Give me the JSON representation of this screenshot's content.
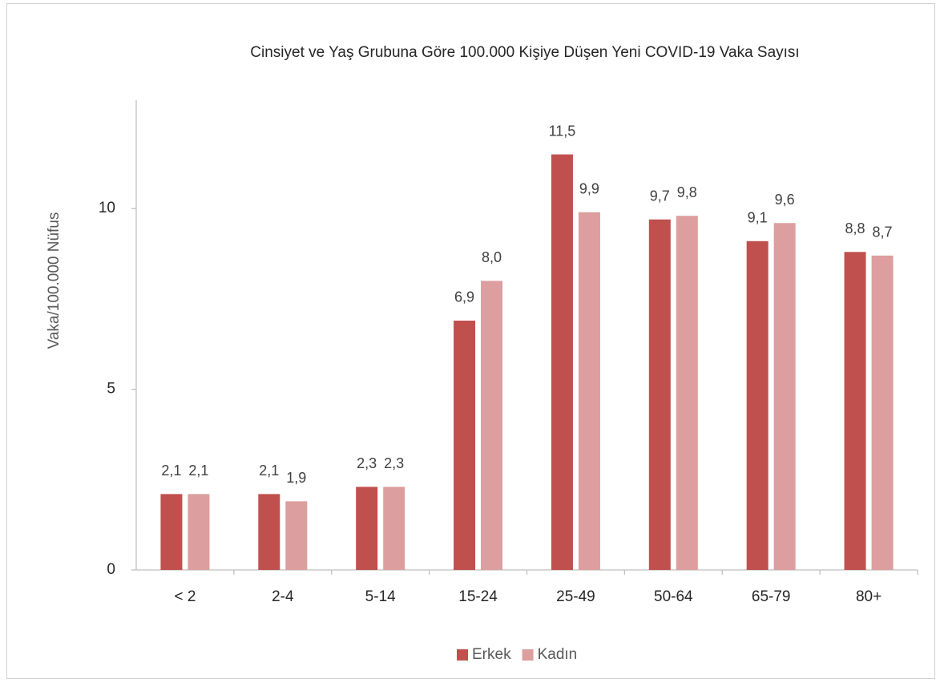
{
  "chart_data": {
    "type": "bar",
    "title": "Cinsiyet ve Yaş Grubuna Göre 100.000 Kişiye Düşen Yeni COVID-19 Vaka Sayısı",
    "y_label": "Vaka/100.000 Nüfus",
    "categories": [
      "< 2",
      "2-4",
      "5-14",
      "15-24",
      "25-49",
      "50-64",
      "65-79",
      "80+"
    ],
    "series": [
      {
        "name": "Erkek",
        "color": "#c0504d",
        "values": [
          2.1,
          2.1,
          2.3,
          6.9,
          11.5,
          9.7,
          9.1,
          8.8
        ],
        "value_labels": [
          "2,1",
          "2,1",
          "2,3",
          "6,9",
          "11,5",
          "9,7",
          "9,1",
          "8,8"
        ]
      },
      {
        "name": "Kadın",
        "color": "#dc9e9e",
        "values": [
          2.1,
          1.9,
          2.3,
          8.0,
          9.9,
          9.8,
          9.6,
          8.7
        ],
        "value_labels": [
          "2,1",
          "1,9",
          "2,3",
          "8,0",
          "9,9",
          "9,8",
          "9,6",
          "8,7"
        ]
      }
    ],
    "ylim": [
      0,
      13
    ],
    "yticks": [
      0,
      5,
      10
    ],
    "grid": false,
    "legend": "bottom"
  }
}
